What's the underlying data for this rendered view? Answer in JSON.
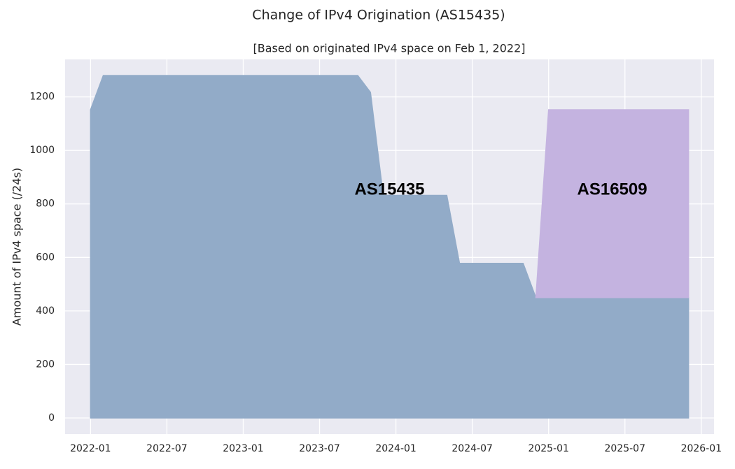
{
  "chart_data": {
    "type": "stacked_area",
    "title": "Change of IPv4 Origination (AS15435)",
    "subtitle": "[Based on originated IPv4 space on Feb 1, 2022]",
    "y_label": "Amount of IPv4 space (/24s)",
    "x": [
      "2022-01",
      "2022-02",
      "2023-10",
      "2023-11",
      "2023-12",
      "2024-05",
      "2024-06",
      "2024-11",
      "2024-12",
      "2025-01",
      "2025-12"
    ],
    "series": [
      {
        "name": "AS15435",
        "color": "#92abc8",
        "values": [
          1152,
          1280,
          1280,
          1217,
          832,
          832,
          578,
          578,
          450,
          450,
          450
        ]
      },
      {
        "name": "AS16509",
        "color": "#c4b3e0",
        "values": [
          null,
          null,
          null,
          null,
          null,
          null,
          null,
          null,
          0,
          702,
          702
        ]
      }
    ],
    "xlim": [
      "2021-11",
      "2026-02"
    ],
    "xticks": [
      "2022-01",
      "2022-07",
      "2023-01",
      "2023-07",
      "2024-01",
      "2024-07",
      "2025-01",
      "2025-07",
      "2026-01"
    ],
    "ylim": [
      -60,
      1340
    ],
    "yticks": [
      0,
      200,
      400,
      600,
      800,
      1000,
      1200
    ],
    "grid": true
  }
}
